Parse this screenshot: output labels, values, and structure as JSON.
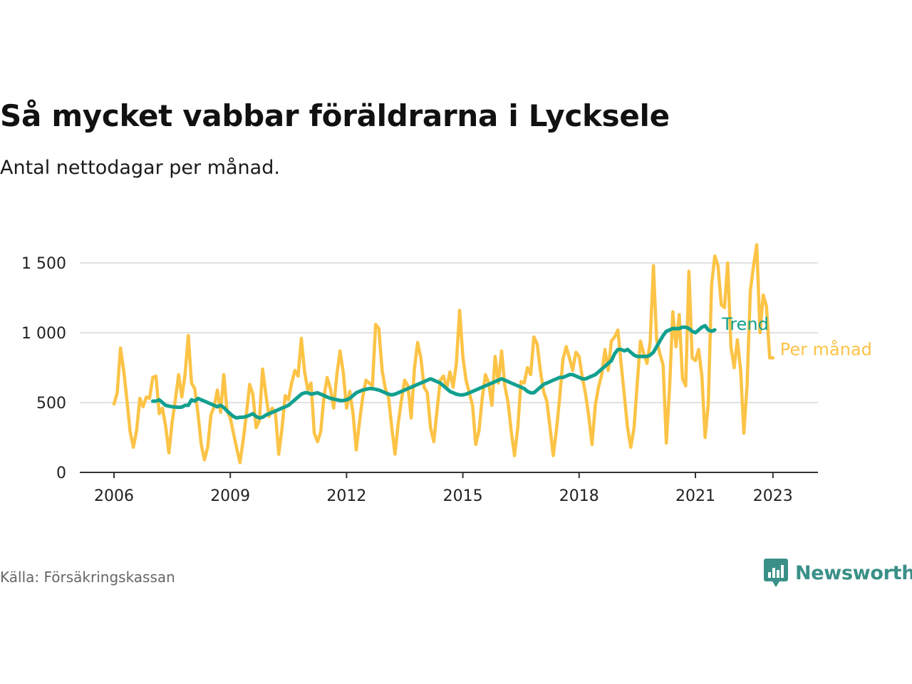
{
  "title": "Så mycket vabbar föräldrarna i Lycksele",
  "subtitle": "Antal nettodagar per månad.",
  "source": "Källa: Försäkringskassan",
  "brand": "Newsworthy",
  "colors": {
    "trend": "#12a08f",
    "monthly": "#fcc346",
    "grid": "#d9d9d9",
    "axis": "#333333",
    "brand": "#3a9088"
  },
  "chart_data": {
    "type": "line",
    "title": "Så mycket vabbar föräldrarna i Lycksele",
    "xlabel": "",
    "ylabel": "",
    "x_ticks": [
      "2006",
      "2009",
      "2012",
      "2015",
      "2018",
      "2021",
      "2023"
    ],
    "y_ticks": [
      0,
      500,
      1000,
      1500
    ],
    "y_tick_labels": [
      "0",
      "500",
      "1 000",
      "1 500"
    ],
    "ylim": [
      0,
      1650
    ],
    "grid": true,
    "legend": "inline labels at line ends (right)",
    "series": [
      {
        "name": "Per månad",
        "start": "2006-01",
        "values": [
          490,
          570,
          890,
          730,
          520,
          290,
          180,
          300,
          530,
          470,
          540,
          530,
          680,
          690,
          420,
          460,
          330,
          140,
          360,
          520,
          700,
          540,
          700,
          980,
          640,
          600,
          420,
          200,
          90,
          180,
          410,
          470,
          590,
          430,
          700,
          440,
          390,
          280,
          170,
          70,
          230,
          420,
          630,
          560,
          320,
          370,
          740,
          560,
          400,
          460,
          420,
          130,
          310,
          550,
          520,
          640,
          730,
          690,
          960,
          720,
          590,
          640,
          280,
          220,
          290,
          540,
          680,
          600,
          460,
          700,
          870,
          710,
          460,
          580,
          420,
          160,
          360,
          540,
          660,
          640,
          620,
          1060,
          1030,
          730,
          600,
          540,
          320,
          130,
          350,
          520,
          660,
          620,
          390,
          740,
          930,
          820,
          610,
          570,
          320,
          220,
          440,
          660,
          690,
          600,
          720,
          610,
          780,
          1160,
          830,
          660,
          570,
          480,
          200,
          300,
          530,
          700,
          640,
          480,
          830,
          640,
          870,
          620,
          500,
          290,
          120,
          320,
          650,
          640,
          750,
          700,
          970,
          920,
          730,
          580,
          510,
          320,
          120,
          310,
          540,
          810,
          900,
          820,
          730,
          860,
          830,
          680,
          560,
          400,
          200,
          480,
          610,
          700,
          880,
          730,
          940,
          970,
          1020,
          780,
          550,
          320,
          180,
          320,
          640,
          940,
          850,
          780,
          930,
          1480,
          950,
          850,
          770,
          210,
          600,
          1150,
          900,
          1130,
          670,
          620,
          1440,
          820,
          800,
          880,
          690,
          250,
          490,
          1340,
          1550,
          1480,
          1200,
          1180,
          1500,
          900,
          750,
          950,
          730,
          280,
          620,
          1300,
          1480,
          1630,
          1000,
          1270,
          1190,
          820,
          820
        ]
      },
      {
        "name": "Trend",
        "start": "2007-01",
        "values": [
          510,
          510,
          520,
          500,
          480,
          475,
          470,
          468,
          466,
          468,
          480,
          480,
          520,
          510,
          530,
          520,
          510,
          500,
          490,
          480,
          470,
          480,
          465,
          440,
          420,
          400,
          390,
          395,
          395,
          400,
          410,
          420,
          400,
          390,
          395,
          410,
          420,
          430,
          440,
          450,
          460,
          470,
          480,
          500,
          520,
          540,
          560,
          570,
          570,
          560,
          565,
          570,
          560,
          550,
          540,
          530,
          525,
          520,
          515,
          515,
          520,
          530,
          550,
          570,
          580,
          590,
          595,
          600,
          600,
          595,
          590,
          580,
          570,
          560,
          555,
          560,
          570,
          580,
          590,
          600,
          610,
          620,
          630,
          640,
          650,
          660,
          670,
          660,
          650,
          640,
          620,
          600,
          580,
          570,
          560,
          555,
          555,
          560,
          570,
          580,
          590,
          600,
          610,
          620,
          630,
          640,
          650,
          660,
          670,
          660,
          650,
          640,
          630,
          620,
          610,
          600,
          580,
          570,
          570,
          590,
          610,
          630,
          640,
          650,
          660,
          670,
          680,
          680,
          690,
          700,
          700,
          690,
          680,
          670,
          670,
          680,
          690,
          700,
          720,
          740,
          760,
          780,
          800,
          850,
          880,
          880,
          870,
          880,
          860,
          840,
          830,
          830,
          830,
          830,
          840,
          860,
          900,
          940,
          980,
          1010,
          1020,
          1030,
          1030,
          1030,
          1040,
          1040,
          1030,
          1010,
          1000,
          1020,
          1040,
          1050,
          1020,
          1010,
          1020
        ]
      }
    ]
  }
}
